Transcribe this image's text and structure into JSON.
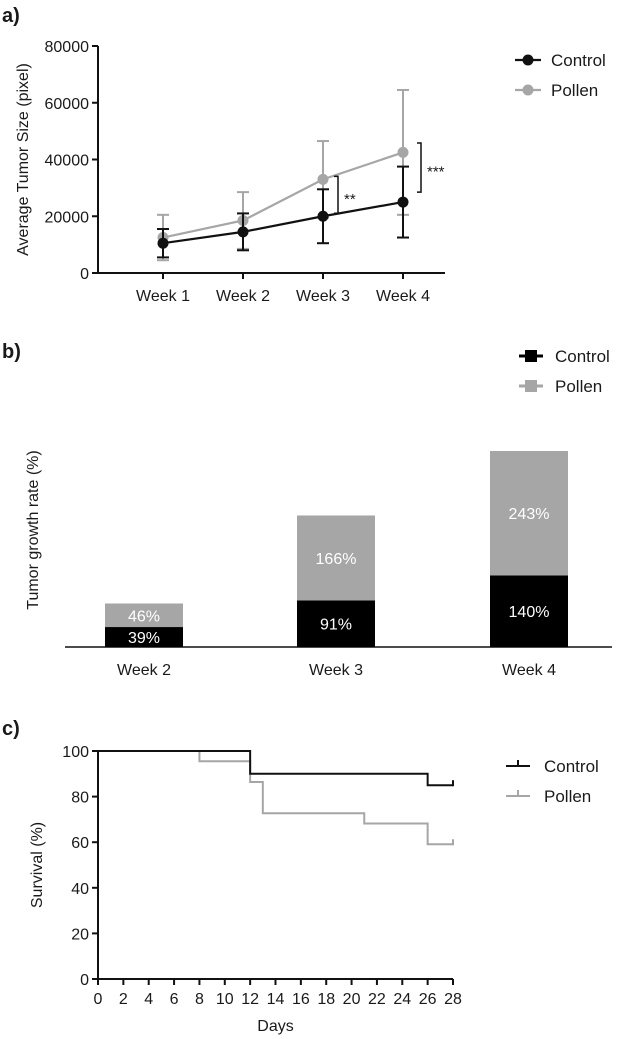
{
  "chart_data": [
    {
      "panel": "a)",
      "type": "line",
      "ylabel": "Average Tumor Size (pixel)",
      "xlabel": "",
      "ylim": [
        0,
        80000
      ],
      "yticks": [
        "0",
        "20000",
        "40000",
        "60000",
        "80000"
      ],
      "yticks_values": [
        0,
        20000,
        40000,
        60000,
        80000
      ],
      "categories": [
        "Week 1",
        "Week 2",
        "Week 3",
        "Week 4"
      ],
      "series": [
        {
          "name": "Control",
          "color": "#111111",
          "marker": "circle",
          "values": [
            10500,
            14500,
            20000,
            25000
          ],
          "error": [
            5000,
            6500,
            9500,
            12500
          ]
        },
        {
          "name": "Pollen",
          "color": "#a6a6a6",
          "marker": "circle",
          "values": [
            12500,
            18500,
            33000,
            42500
          ],
          "error": [
            8000,
            10000,
            13500,
            22000
          ]
        }
      ],
      "annotations": [
        {
          "label": "**",
          "category": "Week 3",
          "between": [
            20000,
            33000
          ]
        },
        {
          "label": "***",
          "category": "Week 4",
          "between": [
            25000,
            43000
          ]
        }
      ],
      "legend": "top-right",
      "grid": false
    },
    {
      "panel": "b)",
      "type": "bar",
      "stacked": true,
      "ylabel": "Tumor growth rate (%)",
      "xlabel": "",
      "categories": [
        "Week 2",
        "Week 3",
        "Week 4"
      ],
      "series": [
        {
          "name": "Control",
          "color": "#000000",
          "values": [
            39,
            91,
            140
          ],
          "labels": [
            "39%",
            "91%",
            "140%"
          ]
        },
        {
          "name": "Pollen",
          "color": "#a6a6a6",
          "values": [
            46,
            166,
            243
          ],
          "labels": [
            "46%",
            "166%",
            "243%"
          ]
        }
      ],
      "legend": "top-right",
      "grid": false
    },
    {
      "panel": "c)",
      "type": "line",
      "step": true,
      "xlabel": "Days",
      "ylabel": "Survival (%)",
      "xlim": [
        0,
        28
      ],
      "ylim": [
        0,
        100
      ],
      "xticks": [
        "0",
        "2",
        "4",
        "6",
        "8",
        "10",
        "12",
        "14",
        "16",
        "18",
        "20",
        "22",
        "24",
        "26",
        "28"
      ],
      "xticks_values": [
        0,
        2,
        4,
        6,
        8,
        10,
        12,
        14,
        16,
        18,
        20,
        22,
        24,
        26,
        28
      ],
      "yticks": [
        "0",
        "20",
        "40",
        "60",
        "80",
        "100"
      ],
      "yticks_values": [
        0,
        20,
        40,
        60,
        80,
        100
      ],
      "series": [
        {
          "name": "Control",
          "color": "#111111",
          "points": [
            [
              0,
              100
            ],
            [
              12,
              100
            ],
            [
              12,
              90
            ],
            [
              26,
              90
            ],
            [
              26,
              85
            ],
            [
              28,
              85
            ]
          ],
          "censored": [
            [
              28,
              85
            ]
          ]
        },
        {
          "name": "Pollen",
          "color": "#a6a6a6",
          "points": [
            [
              0,
              100
            ],
            [
              8,
              100
            ],
            [
              8,
              95.5
            ],
            [
              12,
              95.5
            ],
            [
              12,
              86.4
            ],
            [
              13,
              86.4
            ],
            [
              13,
              72.7
            ],
            [
              21,
              72.7
            ],
            [
              21,
              68.2
            ],
            [
              26,
              68.2
            ],
            [
              26,
              59.1
            ],
            [
              28,
              59.1
            ]
          ],
          "censored": [
            [
              28,
              59.1
            ]
          ]
        }
      ],
      "legend": "top-right",
      "grid": false
    }
  ]
}
